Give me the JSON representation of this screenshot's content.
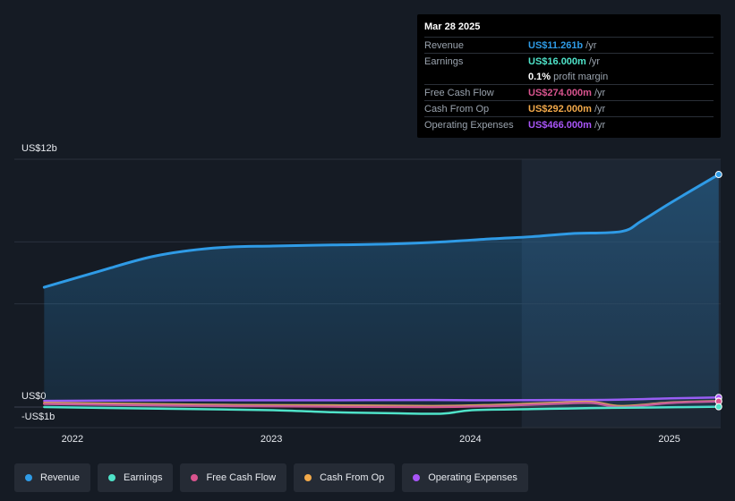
{
  "tooltip": {
    "date": "Mar 28 2025",
    "rows": [
      {
        "label": "Revenue",
        "value": "US$11.261b",
        "unit": "/yr",
        "color": "#2f9be6"
      },
      {
        "label": "Earnings",
        "value": "US$16.000m",
        "unit": "/yr",
        "color": "#4fe3c9"
      },
      {
        "label": "",
        "value": "0.1%",
        "unit": "profit margin",
        "color": "#ffffff"
      },
      {
        "label": "Free Cash Flow",
        "value": "US$274.000m",
        "unit": "/yr",
        "color": "#d9548e"
      },
      {
        "label": "Cash From Op",
        "value": "US$292.000m",
        "unit": "/yr",
        "color": "#f2a94a"
      },
      {
        "label": "Operating Expenses",
        "value": "US$466.000m",
        "unit": "/yr",
        "color": "#a855f7"
      }
    ]
  },
  "legend": [
    {
      "label": "Revenue",
      "color": "#2f9be6"
    },
    {
      "label": "Earnings",
      "color": "#4fe3c9"
    },
    {
      "label": "Free Cash Flow",
      "color": "#d9548e"
    },
    {
      "label": "Cash From Op",
      "color": "#f2a94a"
    },
    {
      "label": "Operating Expenses",
      "color": "#a855f7"
    }
  ],
  "chart_data": {
    "type": "area",
    "yTickLabels": {
      "top": "US$12b",
      "zero": "US$0",
      "bottom": "-US$1b"
    },
    "ylim": [
      -1,
      12
    ],
    "xlim": [
      2021.7,
      2025.25
    ],
    "x_ticks": [
      {
        "x": 2022.0,
        "label": "2022"
      },
      {
        "x": 2023.0,
        "label": "2023"
      },
      {
        "x": 2024.0,
        "label": "2024"
      },
      {
        "x": 2025.0,
        "label": "2025"
      }
    ],
    "highlight_from": 2024.25,
    "series": [
      {
        "name": "Revenue",
        "color": "#2f9be6",
        "fill": true,
        "x": [
          2021.85,
          2022.1,
          2022.4,
          2022.7,
          2023.0,
          2023.3,
          2023.6,
          2023.85,
          2024.1,
          2024.3,
          2024.5,
          2024.75,
          2024.85,
          2025.0,
          2025.24
        ],
        "y": [
          5.8,
          6.5,
          7.3,
          7.7,
          7.8,
          7.85,
          7.9,
          8.0,
          8.15,
          8.25,
          8.4,
          8.5,
          9.0,
          9.9,
          11.261
        ]
      },
      {
        "name": "Earnings",
        "color": "#4fe3c9",
        "fill": false,
        "x": [
          2021.85,
          2022.2,
          2022.6,
          2023.0,
          2023.3,
          2023.6,
          2023.85,
          2024.0,
          2024.3,
          2024.6,
          2024.9,
          2025.24
        ],
        "y": [
          0.0,
          -0.05,
          -0.1,
          -0.15,
          -0.25,
          -0.3,
          -0.32,
          -0.15,
          -0.1,
          -0.05,
          -0.02,
          0.016
        ]
      },
      {
        "name": "Free Cash Flow",
        "color": "#d9548e",
        "fill": false,
        "x": [
          2021.85,
          2022.3,
          2022.8,
          2023.3,
          2023.8,
          2024.1,
          2024.4,
          2024.6,
          2024.75,
          2025.0,
          2025.24
        ],
        "y": [
          0.15,
          0.1,
          0.05,
          0.02,
          0.0,
          0.05,
          0.15,
          0.2,
          0.0,
          0.2,
          0.274
        ]
      },
      {
        "name": "Cash From Op",
        "color": "#f2a94a",
        "fill": false,
        "x": [
          2021.85,
          2022.3,
          2022.8,
          2023.3,
          2023.8,
          2024.1,
          2024.4,
          2024.6,
          2024.75,
          2025.0,
          2025.24
        ],
        "y": [
          0.2,
          0.15,
          0.1,
          0.08,
          0.05,
          0.1,
          0.2,
          0.25,
          0.05,
          0.22,
          0.292
        ]
      },
      {
        "name": "Operating Expenses",
        "color": "#a855f7",
        "fill": false,
        "x": [
          2021.85,
          2022.3,
          2022.8,
          2023.3,
          2023.8,
          2024.1,
          2024.4,
          2024.7,
          2025.0,
          2025.24
        ],
        "y": [
          0.3,
          0.32,
          0.33,
          0.33,
          0.34,
          0.33,
          0.34,
          0.35,
          0.42,
          0.466
        ]
      }
    ]
  }
}
